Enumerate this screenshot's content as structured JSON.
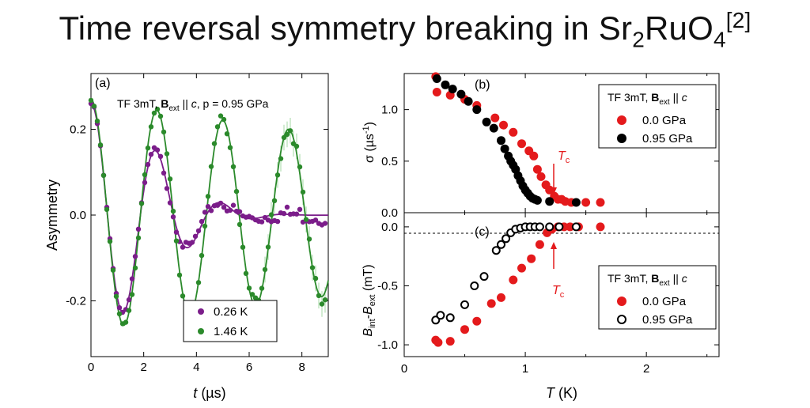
{
  "slide": {
    "title_main": "Time reversal symmetry breaking in Sr",
    "title_sub1": "2",
    "title_mid": "RuO",
    "title_sub2": "4",
    "title_sup": "[2]"
  },
  "colors": {
    "purple": "#7b1d8a",
    "green": "#2b8a2b",
    "red": "#e41a1c",
    "black": "#000000",
    "error": "#a6d8a6"
  },
  "chart_data": [
    {
      "panel": "(a)",
      "type": "scatter",
      "xlabel_italic": "t",
      "xlabel_rest": " (µs)",
      "ylabel": "Asymmetry",
      "xlim": [
        0,
        9
      ],
      "ylim": [
        -0.33,
        0.33
      ],
      "xticks": [
        0,
        2,
        4,
        6,
        8
      ],
      "yticks": [
        -0.2,
        0.0,
        0.2
      ],
      "ytick_labels": [
        "-0.2",
        "0.0",
        "0.2"
      ],
      "annotation": {
        "pre": "TF 3mT, ",
        "b": "B",
        "sub": "ext",
        "post": " || ",
        "c": "c",
        "rest": ", p = 0.95 GPa"
      },
      "legend": {
        "position": "bottom-right",
        "entries": [
          "0.26 K",
          "1.46 K"
        ]
      },
      "series": [
        {
          "name": "0.26 K",
          "color": "#7b1d8a",
          "model": {
            "A": 0.26,
            "f": 0.4,
            "lambda": 0.3,
            "decay": "gaussian"
          }
        },
        {
          "name": "1.46 K",
          "color": "#2b8a2b",
          "model": {
            "A": 0.27,
            "f": 0.4,
            "lambda": 0.04,
            "decay": "exponential"
          }
        }
      ]
    },
    {
      "panel": "(b)",
      "type": "scatter",
      "ylabel": "σ (µs-1)",
      "ylabel_parts": {
        "a": "σ (µs",
        "sup": "-1",
        "b": ")"
      },
      "xlim": [
        0,
        2.6
      ],
      "ylim": [
        0,
        1.35
      ],
      "yticks": [
        0.0,
        0.5,
        1.0
      ],
      "ytick_labels": [
        "0.0",
        "0.5",
        "1.0"
      ],
      "annotation": "Tc",
      "legend_title": {
        "pre": "TF 3mT, ",
        "b": "B",
        "sub": "ext",
        "post": " || ",
        "c": "c"
      },
      "legend": {
        "position": "top-right",
        "entries": [
          "0.0 GPa",
          "0.95 GPa"
        ]
      },
      "series": [
        {
          "name": "0.0 GPa",
          "color": "#e41a1c",
          "filled": true,
          "x": [
            0.26,
            0.27,
            0.38,
            0.5,
            0.6,
            0.75,
            0.82,
            0.9,
            0.97,
            1.03,
            1.07,
            1.1,
            1.13,
            1.17,
            1.2,
            1.24,
            1.27,
            1.3,
            1.33,
            1.38,
            1.5,
            1.62
          ],
          "y": [
            1.32,
            1.17,
            1.14,
            1.1,
            1.04,
            0.92,
            0.85,
            0.78,
            0.67,
            0.6,
            0.55,
            0.42,
            0.35,
            0.27,
            0.22,
            0.16,
            0.13,
            0.13,
            0.11,
            0.1,
            0.1,
            0.1
          ]
        },
        {
          "name": "0.95 GPa",
          "color": "#000000",
          "filled": true,
          "x": [
            0.27,
            0.34,
            0.4,
            0.47,
            0.53,
            0.6,
            0.68,
            0.74,
            0.8,
            0.83,
            0.86,
            0.88,
            0.9,
            0.92,
            0.94,
            0.96,
            0.98,
            1.0,
            1.02,
            1.04,
            1.06,
            1.08,
            1.1,
            1.2,
            1.42
          ],
          "y": [
            1.3,
            1.24,
            1.2,
            1.15,
            1.08,
            1.0,
            0.88,
            0.82,
            0.7,
            0.62,
            0.55,
            0.5,
            0.46,
            0.42,
            0.36,
            0.31,
            0.26,
            0.22,
            0.19,
            0.16,
            0.14,
            0.13,
            0.12,
            0.11,
            0.1
          ]
        }
      ]
    },
    {
      "panel": "(c)",
      "type": "scatter",
      "xlabel_italic": "T",
      "xlabel_rest": " (K)",
      "ylabel_parts": {
        "b1": "B",
        "s1": "int",
        "mid": "-",
        "b2": "B",
        "s2": "ext",
        "rest": " (mT)"
      },
      "xlim": [
        0,
        2.6
      ],
      "ylim": [
        -1.1,
        0.12
      ],
      "xticks": [
        0,
        1,
        2
      ],
      "yticks": [
        -1.0,
        -0.5,
        0.0
      ],
      "ytick_labels": [
        "-1.0",
        "-0.5",
        "0.0"
      ],
      "annotation": "Tc",
      "legend_title": {
        "pre": "TF 3mT, ",
        "b": "B",
        "sub": "ext",
        "post": " || ",
        "c": "c"
      },
      "legend": {
        "position": "bottom-right",
        "entries": [
          "0.0 GPa",
          "0.95 GPa"
        ]
      },
      "series": [
        {
          "name": "0.0 GPa",
          "color": "#e41a1c",
          "filled": true,
          "x": [
            0.26,
            0.28,
            0.38,
            0.5,
            0.6,
            0.72,
            0.8,
            0.9,
            0.97,
            1.05,
            1.12,
            1.18,
            1.22,
            1.27,
            1.32,
            1.37,
            1.44,
            1.62
          ],
          "y": [
            -0.96,
            -0.98,
            -0.97,
            -0.87,
            -0.8,
            -0.65,
            -0.6,
            -0.45,
            -0.35,
            -0.27,
            -0.15,
            -0.05,
            -0.02,
            0.0,
            0.0,
            0.0,
            0.0,
            0.0
          ]
        },
        {
          "name": "0.95 GPa",
          "color": "#000000",
          "filled": false,
          "x": [
            0.26,
            0.3,
            0.38,
            0.5,
            0.58,
            0.66,
            0.76,
            0.8,
            0.84,
            0.88,
            0.92,
            0.96,
            1.0,
            1.04,
            1.08,
            1.12,
            1.2,
            1.28,
            1.42
          ],
          "y": [
            -0.79,
            -0.75,
            -0.77,
            -0.66,
            -0.5,
            -0.42,
            -0.2,
            -0.15,
            -0.1,
            -0.05,
            -0.02,
            -0.01,
            0.0,
            0.0,
            0.0,
            0.0,
            0.0,
            0.0,
            0.0
          ]
        }
      ]
    }
  ]
}
